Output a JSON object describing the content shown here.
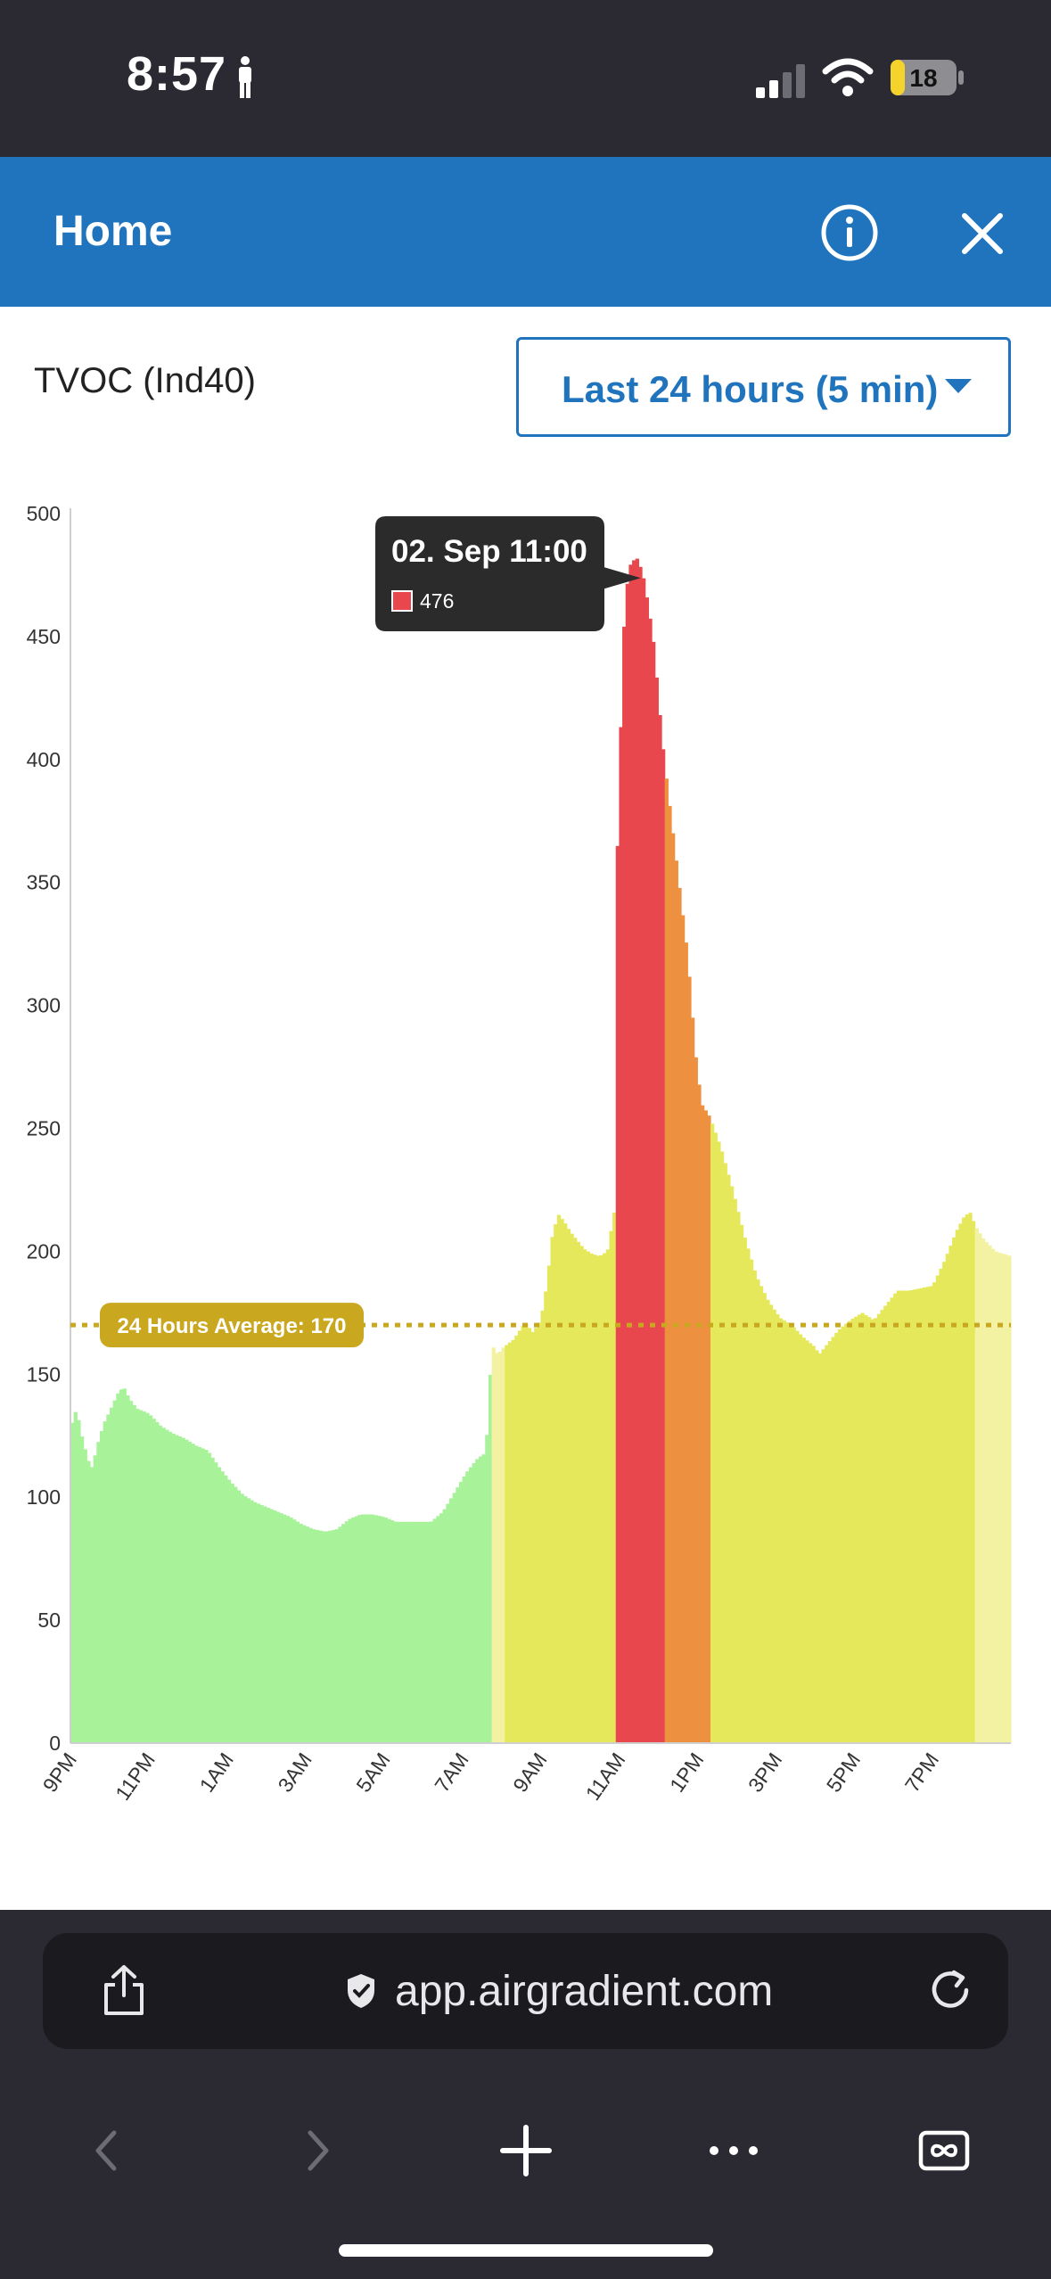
{
  "status_bar": {
    "time": "8:57",
    "battery": "18",
    "person_icon": "person-icon",
    "signal_icon": "cellular-signal-icon",
    "wifi_icon": "wifi-icon",
    "battery_icon": "battery-icon"
  },
  "header": {
    "title": "Home",
    "info_icon": "info-icon",
    "close_icon": "close-icon",
    "color": "#1f74bd"
  },
  "controls": {
    "metric_label": "TVOC (Ind40)",
    "range_label": "Last 24 hours (5 min)",
    "range_icon": "caret-down-icon"
  },
  "chart_data": {
    "type": "bar",
    "ylim": [
      0,
      500
    ],
    "yticks": [
      0,
      50,
      100,
      150,
      200,
      250,
      300,
      350,
      400,
      450,
      500
    ],
    "xtick_labels": [
      "9PM",
      "11PM",
      "1AM",
      "3AM",
      "5AM",
      "7AM",
      "9AM",
      "11AM",
      "1PM",
      "3PM",
      "5PM",
      "7PM"
    ],
    "xtick_hours": [
      0,
      2,
      4,
      6,
      8,
      10,
      12,
      14,
      16,
      18,
      20,
      22
    ],
    "x_unit": "hours since 9PM (5 min intervals)",
    "x_range": [
      0,
      24
    ],
    "grid": false,
    "average": {
      "label": "24 Hours Average: 170",
      "value": 170,
      "color": "#c9a820"
    },
    "color_bands": [
      {
        "from": 0,
        "to": 10.75,
        "color": "#a8f29a"
      },
      {
        "from": 10.75,
        "to": 11.05,
        "color": "#f2f2a2"
      },
      {
        "from": 11.05,
        "to": 13.95,
        "color": "#e6e85c"
      },
      {
        "from": 13.95,
        "to": 15.15,
        "color": "#e8474e"
      },
      {
        "from": 15.15,
        "to": 16.35,
        "color": "#ed9140"
      },
      {
        "from": 16.35,
        "to": 23.1,
        "color": "#e6e85c"
      },
      {
        "from": 23.1,
        "to": 24,
        "color": "#f2f2a2"
      }
    ],
    "series_points": [
      [
        0,
        128
      ],
      [
        0.15,
        136
      ],
      [
        0.3,
        124
      ],
      [
        0.45,
        115
      ],
      [
        0.55,
        112
      ],
      [
        0.7,
        122
      ],
      [
        0.85,
        130
      ],
      [
        1.0,
        135
      ],
      [
        1.2,
        142
      ],
      [
        1.35,
        145
      ],
      [
        1.5,
        140
      ],
      [
        1.7,
        136
      ],
      [
        2.0,
        134
      ],
      [
        2.3,
        129
      ],
      [
        2.6,
        126
      ],
      [
        2.9,
        124
      ],
      [
        3.2,
        121
      ],
      [
        3.5,
        119
      ],
      [
        3.8,
        112
      ],
      [
        4.1,
        106
      ],
      [
        4.4,
        101
      ],
      [
        4.7,
        98
      ],
      [
        5.0,
        96
      ],
      [
        5.3,
        94
      ],
      [
        5.6,
        92
      ],
      [
        5.9,
        89
      ],
      [
        6.2,
        87
      ],
      [
        6.5,
        86
      ],
      [
        6.8,
        87
      ],
      [
        7.1,
        91
      ],
      [
        7.4,
        93
      ],
      [
        7.7,
        93
      ],
      [
        8.0,
        92
      ],
      [
        8.3,
        90
      ],
      [
        8.6,
        90
      ],
      [
        8.9,
        90
      ],
      [
        9.2,
        90
      ],
      [
        9.5,
        94
      ],
      [
        9.8,
        102
      ],
      [
        10.1,
        110
      ],
      [
        10.4,
        116
      ],
      [
        10.6,
        118
      ],
      [
        10.75,
        162
      ],
      [
        10.9,
        158
      ],
      [
        11.05,
        161
      ],
      [
        11.3,
        164
      ],
      [
        11.6,
        171
      ],
      [
        11.8,
        167
      ],
      [
        12.0,
        172
      ],
      [
        12.15,
        186
      ],
      [
        12.3,
        207
      ],
      [
        12.45,
        215
      ],
      [
        12.6,
        212
      ],
      [
        12.75,
        208
      ],
      [
        12.9,
        205
      ],
      [
        13.1,
        201
      ],
      [
        13.3,
        199
      ],
      [
        13.5,
        198
      ],
      [
        13.7,
        200
      ],
      [
        13.9,
        218
      ],
      [
        13.95,
        360
      ],
      [
        14.05,
        418
      ],
      [
        14.15,
        466
      ],
      [
        14.3,
        480
      ],
      [
        14.45,
        482
      ],
      [
        14.6,
        476
      ],
      [
        14.75,
        462
      ],
      [
        14.9,
        445
      ],
      [
        15.0,
        425
      ],
      [
        15.15,
        400
      ],
      [
        15.3,
        380
      ],
      [
        15.45,
        360
      ],
      [
        15.6,
        340
      ],
      [
        15.75,
        320
      ],
      [
        15.85,
        300
      ],
      [
        15.95,
        280
      ],
      [
        16.1,
        260
      ],
      [
        16.3,
        255
      ],
      [
        16.35,
        253
      ],
      [
        16.6,
        242
      ],
      [
        16.9,
        225
      ],
      [
        17.2,
        206
      ],
      [
        17.5,
        190
      ],
      [
        17.8,
        180
      ],
      [
        18.1,
        173
      ],
      [
        18.4,
        170
      ],
      [
        18.7,
        165
      ],
      [
        19.0,
        161
      ],
      [
        19.1,
        158
      ],
      [
        19.3,
        162
      ],
      [
        19.6,
        168
      ],
      [
        19.9,
        172
      ],
      [
        20.2,
        175
      ],
      [
        20.5,
        172
      ],
      [
        20.8,
        178
      ],
      [
        21.1,
        184
      ],
      [
        21.4,
        184
      ],
      [
        21.7,
        185
      ],
      [
        22.0,
        186
      ],
      [
        22.3,
        196
      ],
      [
        22.6,
        208
      ],
      [
        22.8,
        214
      ],
      [
        22.95,
        216
      ],
      [
        23.1,
        210
      ],
      [
        23.3,
        205
      ],
      [
        23.6,
        200
      ],
      [
        24.0,
        198
      ]
    ],
    "tooltip": {
      "title": "02. Sep  11:00",
      "value": "476",
      "swatch_color": "#e8474e",
      "at_hour": 14.6
    }
  },
  "browser": {
    "url": "app.airgradient.com",
    "share_icon": "share-icon",
    "secure_icon": "shield-check-icon",
    "reload_icon": "reload-icon",
    "back_icon": "chevron-left-icon",
    "forward_icon": "chevron-right-icon",
    "new_tab_icon": "plus-icon",
    "more_icon": "more-icon",
    "tabs_icon": "tabs-icon"
  }
}
